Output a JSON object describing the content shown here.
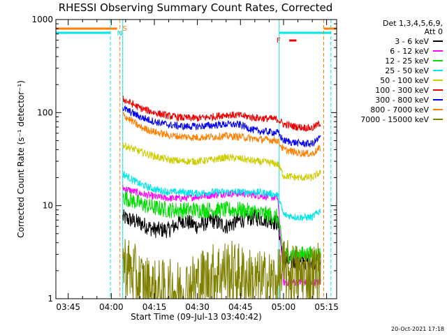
{
  "header": {
    "title": "RHESSI Observing Summary Count Rates, Corrected",
    "footer_date": "20-Oct-2021 17:18"
  },
  "legend": {
    "line1": "Det 1,3,4,5,6,9,",
    "line2": "Att 0",
    "entries": [
      {
        "label": "3 - 6 keV",
        "color": "#000000"
      },
      {
        "label": "6 - 12 keV",
        "color": "#ff00ff"
      },
      {
        "label": "12 - 25 keV",
        "color": "#00dd00"
      },
      {
        "label": "25 - 50 keV",
        "color": "#00e5e5"
      },
      {
        "label": "50 - 100 keV",
        "color": "#cccc00"
      },
      {
        "label": "100 - 300 keV",
        "color": "#ee0000"
      },
      {
        "label": "300 - 800 keV",
        "color": "#0000ee"
      },
      {
        "label": "800 - 7000 keV",
        "color": "#ff7f00"
      },
      {
        "label": "7000 - 15000 keV",
        "color": "#808000"
      }
    ]
  },
  "chart_data": {
    "type": "line",
    "title": "RHESSI Observing Summary Count Rates, Corrected",
    "xlabel": "Start Time (09-Jul-13 03:40:42)",
    "ylabel": "Corrected Count Rate (s⁻¹ detector⁻¹)",
    "y_scale": "log",
    "ylim": [
      1,
      1000
    ],
    "xlim": [
      "03:40:42",
      "05:18:30"
    ],
    "x_ticks": [
      "03:45",
      "04:00",
      "04:15",
      "04:30",
      "04:45",
      "05:00",
      "05:15"
    ],
    "y_ticks": [
      "1",
      "10",
      "100",
      "1000"
    ],
    "grid": false,
    "legend_position": "right",
    "annotations": [
      {
        "text": "S",
        "time": "04:03:00"
      },
      {
        "text": "N",
        "time": "04:01:00"
      },
      {
        "text": "F",
        "time": "04:59:00"
      }
    ],
    "vertical_markers": {
      "orange_dashed": [
        "04:03:00",
        "05:14:00"
      ],
      "cyan_dashed": [
        "03:59:40",
        "05:16:30"
      ],
      "cyan_solid": [
        "04:04:00",
        "04:58:30"
      ]
    },
    "flags": {
      "saa_orange": [
        [
          "03:40:42",
          "04:02:00"
        ],
        [
          "05:14:00",
          "05:18:30"
        ]
      ],
      "night_cyan": [
        [
          "03:40:42",
          "03:59:40"
        ],
        [
          "04:58:30",
          "05:16:30"
        ]
      ],
      "flare_red": [
        "05:02:00",
        "05:04:30"
      ]
    },
    "series": [
      {
        "name": "3 - 6 keV",
        "x": [
          "04:04",
          "04:10",
          "04:15",
          "04:20",
          "04:25",
          "04:30",
          "04:35",
          "04:40",
          "04:45",
          "04:50",
          "04:55",
          "04:58",
          "05:00",
          "05:05",
          "05:10",
          "05:13"
        ],
        "y": [
          7.5,
          6.5,
          5.5,
          5.5,
          7.0,
          6.0,
          7.0,
          6.0,
          7.0,
          7.5,
          7.0,
          6.5,
          2.5,
          2.5,
          2.5,
          2.5
        ]
      },
      {
        "name": "6 - 12 keV",
        "x": [
          "04:04",
          "04:10",
          "04:15",
          "04:20",
          "04:25",
          "04:30",
          "04:35",
          "04:40",
          "04:45",
          "04:50",
          "04:55",
          "04:58",
          "05:00",
          "05:05",
          "05:10",
          "05:13"
        ],
        "y": [
          15.5,
          13.5,
          12.5,
          12.0,
          12.0,
          12.5,
          13.0,
          13.5,
          13.5,
          13.0,
          12.5,
          12.0,
          1.5,
          1.5,
          1.5,
          1.5
        ]
      },
      {
        "name": "12 - 25 keV",
        "x": [
          "04:04",
          "04:10",
          "04:15",
          "04:20",
          "04:25",
          "04:30",
          "04:35",
          "04:40",
          "04:45",
          "04:50",
          "04:55",
          "04:58",
          "05:00",
          "05:05",
          "05:10",
          "05:13"
        ],
        "y": [
          12.5,
          10.5,
          9.5,
          9.0,
          9.0,
          9.0,
          9.0,
          9.0,
          9.0,
          8.5,
          8.0,
          7.5,
          3.0,
          3.0,
          3.0,
          3.0
        ]
      },
      {
        "name": "25 - 50 keV",
        "x": [
          "04:04",
          "04:10",
          "04:15",
          "04:20",
          "04:25",
          "04:30",
          "04:35",
          "04:40",
          "04:45",
          "04:50",
          "04:55",
          "04:58",
          "05:00",
          "05:05",
          "05:10",
          "05:13"
        ],
        "y": [
          22,
          17,
          15,
          14,
          14,
          13.5,
          14,
          14,
          14,
          14,
          13.5,
          13,
          8,
          7.5,
          7.5,
          9
        ]
      },
      {
        "name": "50 - 100 keV",
        "x": [
          "04:04",
          "04:10",
          "04:15",
          "04:20",
          "04:25",
          "04:30",
          "04:35",
          "04:40",
          "04:45",
          "04:50",
          "04:55",
          "04:58",
          "05:00",
          "05:05",
          "05:10",
          "05:13"
        ],
        "y": [
          45,
          38,
          34,
          31,
          30,
          30,
          31,
          33,
          32,
          30,
          29,
          28,
          21,
          20,
          20,
          23
        ]
      },
      {
        "name": "100 - 300 keV",
        "x": [
          "04:04",
          "04:10",
          "04:15",
          "04:20",
          "04:25",
          "04:30",
          "04:35",
          "04:40",
          "04:45",
          "04:50",
          "04:55",
          "04:58",
          "05:00",
          "05:05",
          "05:10",
          "05:13"
        ],
        "y": [
          140,
          112,
          100,
          92,
          88,
          87,
          90,
          95,
          93,
          88,
          86,
          85,
          75,
          70,
          68,
          78
        ]
      },
      {
        "name": "300 - 800 keV",
        "x": [
          "04:04",
          "04:10",
          "04:15",
          "04:20",
          "04:25",
          "04:30",
          "04:35",
          "04:40",
          "04:45",
          "04:50",
          "04:55",
          "04:58",
          "05:00",
          "05:05",
          "05:10",
          "05:13"
        ],
        "y": [
          112,
          90,
          80,
          74,
          71,
          71,
          73,
          75,
          74,
          64,
          62,
          61,
          50,
          47,
          46,
          55
        ]
      },
      {
        "name": "800 - 7000 keV",
        "x": [
          "04:04",
          "04:10",
          "04:15",
          "04:20",
          "04:25",
          "04:30",
          "04:35",
          "04:40",
          "04:45",
          "04:50",
          "04:55",
          "04:58",
          "05:00",
          "05:05",
          "05:10",
          "05:13"
        ],
        "y": [
          95,
          70,
          62,
          57,
          55,
          54,
          55,
          56,
          55,
          52,
          51,
          50,
          40,
          37,
          36,
          42
        ]
      },
      {
        "name": "7000 - 15000 keV",
        "x": [
          "04:04",
          "04:10",
          "04:15",
          "04:20",
          "04:25",
          "04:30",
          "04:35",
          "04:40",
          "04:45",
          "04:50",
          "04:55",
          "04:58",
          "05:00",
          "05:05",
          "05:10",
          "05:13"
        ],
        "y": [
          2.5,
          1.5,
          1.2,
          1.2,
          1.2,
          1.5,
          1.8,
          2.0,
          1.8,
          1.5,
          1.5,
          1.5,
          2.0,
          1.8,
          1.8,
          2.0
        ]
      }
    ]
  }
}
